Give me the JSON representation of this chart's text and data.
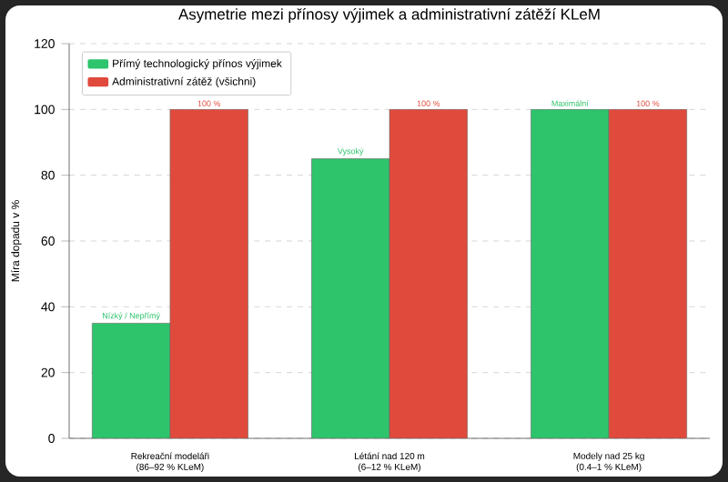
{
  "chart_data": {
    "type": "bar",
    "title": "Asymetrie mezi přínosy výjimek a administrativní zátěží KLeM",
    "ylabel": "Míra dopadu v %",
    "categories": [
      "Rekreační modeláři\n(86–92 % KLeM)",
      "Létání nad 120 m\n(6–12 % KLeM)",
      "Modely nad 25 kg\n(0.4–1 % KLeM)"
    ],
    "series": [
      {
        "name": "Přímý technologický přínos výjimek",
        "color": "#2ec46c",
        "values": [
          35,
          85,
          100
        ],
        "value_labels": [
          "Nízký / Nepřímý",
          "Vysoký",
          "Maximální"
        ]
      },
      {
        "name": "Administrativní zátěž (všichni)",
        "color": "#e04a3c",
        "values": [
          100,
          100,
          100
        ],
        "value_labels": [
          "100 %",
          "100 %",
          "100 %"
        ]
      }
    ],
    "ylim": [
      0,
      120
    ],
    "yticks": [
      0,
      20,
      40,
      60,
      80,
      100,
      120
    ],
    "grid": "y",
    "legend": "top left"
  }
}
